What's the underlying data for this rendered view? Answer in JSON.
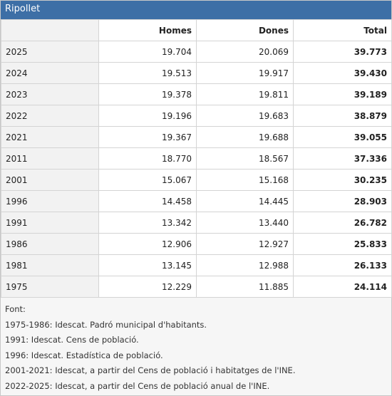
{
  "header": {
    "title": "Ripollet"
  },
  "table": {
    "columns": [
      "",
      "Homes",
      "Dones",
      "Total"
    ],
    "rows": [
      [
        "2025",
        "19.704",
        "20.069",
        "39.773"
      ],
      [
        "2024",
        "19.513",
        "19.917",
        "39.430"
      ],
      [
        "2023",
        "19.378",
        "19.811",
        "39.189"
      ],
      [
        "2022",
        "19.196",
        "19.683",
        "38.879"
      ],
      [
        "2021",
        "19.367",
        "19.688",
        "39.055"
      ],
      [
        "2011",
        "18.770",
        "18.567",
        "37.336"
      ],
      [
        "2001",
        "15.067",
        "15.168",
        "30.235"
      ],
      [
        "1996",
        "14.458",
        "14.445",
        "28.903"
      ],
      [
        "1991",
        "13.342",
        "13.440",
        "26.782"
      ],
      [
        "1986",
        "12.906",
        "12.927",
        "25.833"
      ],
      [
        "1981",
        "13.145",
        "12.988",
        "26.133"
      ],
      [
        "1975",
        "12.229",
        "11.885",
        "24.114"
      ]
    ]
  },
  "notes": [
    "Font:",
    "1975-1986: Idescat. Padró municipal d'habitants.",
    "1991: Idescat. Cens de població.",
    "1996: Idescat. Estadística de població.",
    "2001-2021: Idescat, a partir del Cens de població i habitatges de l'INE.",
    "2022-2025: Idescat, a partir del Cens de població anual de l'INE."
  ]
}
